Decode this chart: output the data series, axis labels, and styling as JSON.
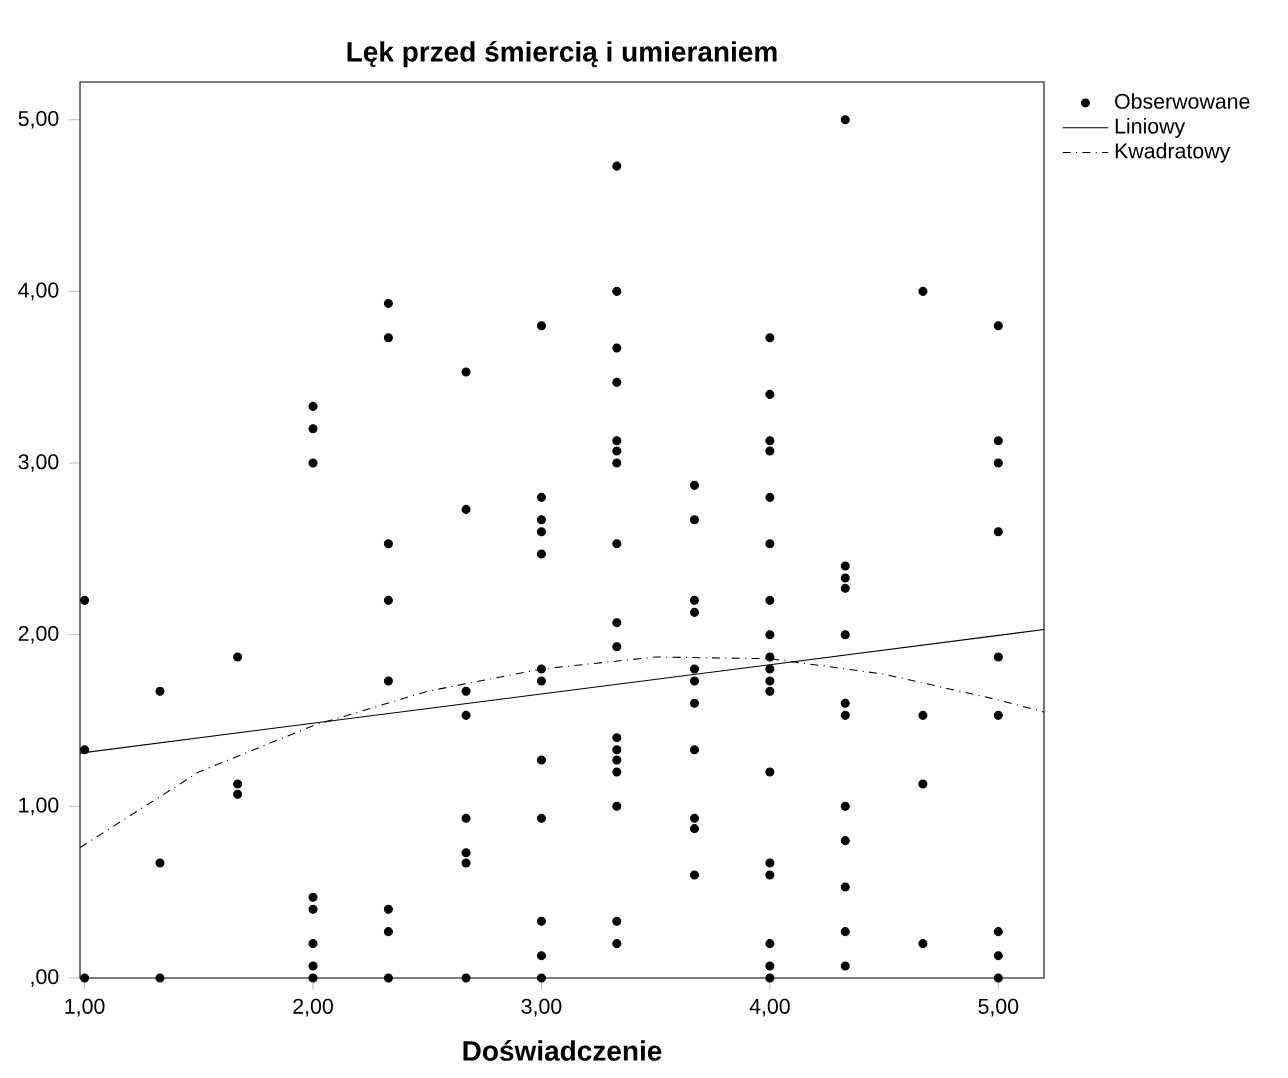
{
  "chart_data": {
    "type": "scatter",
    "title": "Lęk przed śmiercią i umieraniem",
    "xlabel": "Doświadczenie",
    "xlim": [
      0.98,
      5.2
    ],
    "ylim": [
      0,
      5.22
    ],
    "xticks": [
      {
        "value": 1,
        "label": "1,00"
      },
      {
        "value": 2,
        "label": "2,00"
      },
      {
        "value": 3,
        "label": "3,00"
      },
      {
        "value": 4,
        "label": "4,00"
      },
      {
        "value": 5,
        "label": "5,00"
      }
    ],
    "yticks": [
      {
        "value": 0,
        "label": ",00"
      },
      {
        "value": 1,
        "label": "1,00"
      },
      {
        "value": 2,
        "label": "2,00"
      },
      {
        "value": 3,
        "label": "3,00"
      },
      {
        "value": 4,
        "label": "4,00"
      },
      {
        "value": 5,
        "label": "5,00"
      }
    ],
    "grid": false,
    "legend": "top right",
    "series": [
      {
        "name": "Obserwowane",
        "type": "scatter",
        "marker": "circle",
        "color": "#000000",
        "x": [
          1,
          1,
          1,
          1.33,
          1.33,
          1.33,
          1.67,
          1.67,
          1.67,
          2,
          2,
          2,
          2,
          2,
          2,
          2,
          2,
          2.33,
          2.33,
          2.33,
          2.33,
          2.33,
          2.33,
          2.33,
          2.33,
          2.67,
          2.67,
          2.67,
          2.67,
          2.67,
          2.67,
          2.67,
          2.67,
          3,
          3,
          3,
          3,
          3,
          3,
          3,
          3,
          3,
          3,
          3,
          3,
          3.33,
          3.33,
          3.33,
          3.33,
          3.33,
          3.33,
          3.33,
          3.33,
          3.33,
          3.33,
          3.33,
          3.33,
          3.33,
          3.33,
          3.33,
          3.33,
          3.33,
          3.67,
          3.67,
          3.67,
          3.67,
          3.67,
          3.67,
          3.67,
          3.67,
          3.67,
          3.67,
          3.67,
          4,
          4,
          4,
          4,
          4,
          4,
          4,
          4,
          4,
          4,
          4,
          4,
          4,
          4,
          4,
          4,
          4,
          4,
          4.33,
          4.33,
          4.33,
          4.33,
          4.33,
          4.33,
          4.33,
          4.33,
          4.33,
          4.33,
          4.33,
          4.33,
          4.67,
          4.67,
          4.67,
          4.67,
          5,
          5,
          5,
          5,
          5,
          5,
          5,
          5,
          5
        ],
        "values": [
          2.2,
          1.33,
          0,
          1.67,
          0.67,
          0,
          1.87,
          1.13,
          1.07,
          3.33,
          3.2,
          3.0,
          0.47,
          0.4,
          0.2,
          0.07,
          0,
          3.93,
          3.73,
          2.53,
          2.2,
          1.73,
          0.4,
          0.27,
          0,
          3.53,
          2.73,
          1.67,
          1.53,
          0.93,
          0.73,
          0.67,
          0,
          3.8,
          2.8,
          2.67,
          2.6,
          2.47,
          1.8,
          1.73,
          1.27,
          0.93,
          0.33,
          0.13,
          0,
          4.73,
          4.0,
          3.67,
          3.47,
          3.13,
          3.07,
          3.0,
          2.53,
          2.07,
          1.93,
          1.4,
          1.33,
          1.27,
          1.2,
          1.0,
          0.33,
          0.2,
          2.87,
          2.67,
          2.2,
          2.13,
          1.8,
          1.73,
          1.6,
          1.33,
          0.93,
          0.87,
          0.6,
          3.73,
          3.4,
          3.13,
          3.07,
          2.8,
          2.53,
          2.2,
          2.0,
          1.87,
          1.8,
          1.73,
          1.67,
          1.2,
          0.67,
          0.6,
          0.2,
          0.07,
          0,
          5.0,
          2.4,
          2.33,
          2.27,
          2.0,
          1.6,
          1.53,
          1.0,
          0.8,
          0.53,
          0.27,
          0.07,
          4.0,
          1.53,
          1.13,
          0.2,
          3.8,
          3.13,
          3.0,
          2.6,
          1.87,
          1.53,
          0.27,
          0.13,
          0
        ]
      },
      {
        "name": "Liniowy",
        "type": "line",
        "line_style": "solid",
        "marker": "none",
        "color": "#000000",
        "x": [
          0.98,
          5.2
        ],
        "values": [
          1.31,
          2.03
        ]
      },
      {
        "name": "Kwadratowy",
        "type": "line",
        "line_style": "dashdot",
        "marker": "none",
        "color": "#000000",
        "x": [
          0.98,
          1.5,
          2.0,
          2.5,
          3.0,
          3.5,
          4.0,
          4.5,
          5.0,
          5.2
        ],
        "values": [
          0.76,
          1.2,
          1.47,
          1.67,
          1.8,
          1.87,
          1.86,
          1.77,
          1.62,
          1.55
        ]
      }
    ]
  }
}
